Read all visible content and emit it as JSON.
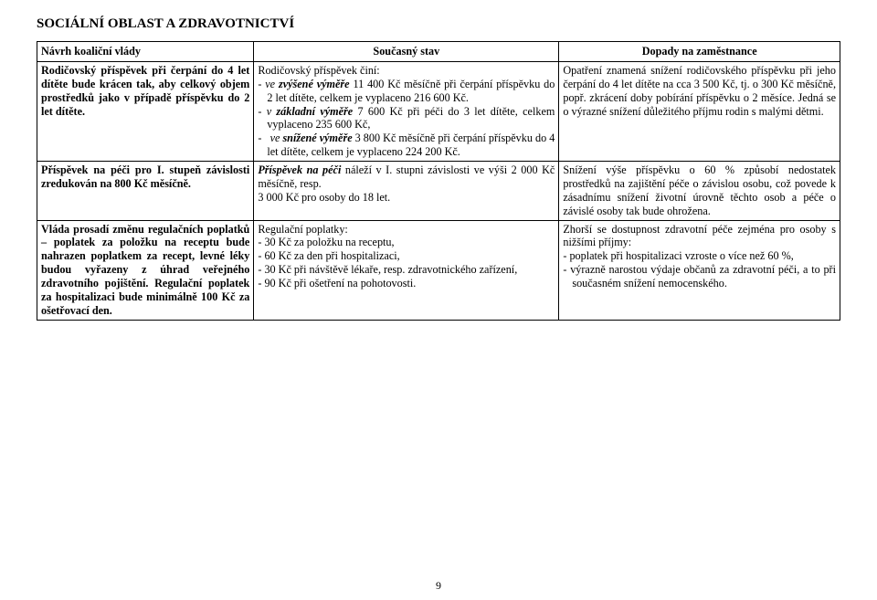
{
  "heading": "SOCIÁLNÍ OBLAST A ZDRAVOTNICTVÍ",
  "header": {
    "col1": "Návrh koaliční vlády",
    "col2": "Současný stav",
    "col3": "Dopady na zaměstnance"
  },
  "row1": {
    "col1": "Rodičovský příspěvek při čerpání do 4 let dítěte bude krácen tak, aby celkový objem prostředků jako v případě příspěvku do 2 let dítěte.",
    "col2": {
      "lead": "Rodičovský příspěvek činí:",
      "li1a": "ve ",
      "li1b": "zvýšené výměře",
      "li1c": " 11 400 Kč měsíčně při čerpání příspěvku do 2 let dítěte, celkem je vyplaceno 216 600 Kč.",
      "li2a": "v ",
      "li2b": "základní výměře",
      "li2c": " 7 600 Kč při péči do 3 let dítěte, celkem vyplaceno 235 600 Kč,",
      "li3a": "ve ",
      "li3b": "snížené výměře",
      "li3c": " 3 800 Kč měsíčně při čerpání příspěvku do 4 let dítěte, celkem je vyplaceno 224 200 Kč."
    },
    "col3": "Opatření znamená snížení rodičovského příspěvku při jeho čerpání do 4 let dítěte na cca 3 500 Kč, tj. o 300 Kč měsíčně, popř. zkrácení doby pobírání příspěvku o 2 měsíce. Jedná se o výrazné snížení důležitého příjmu rodin s malými dětmi."
  },
  "row2": {
    "col1": "Příspěvek na péči pro I. stupeň závislosti zredukován na 800 Kč měsíčně.",
    "col2": {
      "p1a": "Příspěvek na péči",
      "p1b": " náleží v I. stupni závislosti ve výši 2 000 Kč měsíčně, resp.",
      "p2": "3 000 Kč pro osoby do 18 let."
    },
    "col3": "Snížení výše příspěvku o 60 % způsobí nedostatek prostředků na zajištění péče o závislou osobu, což povede k zásadnímu snížení životní úrovně těchto osob a péče o závislé osoby tak bude ohrožena."
  },
  "row3": {
    "col1": "Vláda prosadí změnu regulačních poplatků – poplatek za položku na receptu bude nahrazen poplatkem za recept, levné léky budou vyřazeny z úhrad veřejného zdravotního pojištění. Regulační poplatek za hospitalizaci bude minimálně 100 Kč za ošetřovací den.",
    "col2": {
      "lead": "Regulační poplatky:",
      "li1": "30 Kč za položku na receptu,",
      "li2": "60 Kč za den při hospitalizaci,",
      "li3": "30 Kč při návštěvě lékaře, resp. zdravotnického zařízení,",
      "li4": "90 Kč při ošetření na pohotovosti."
    },
    "col3": {
      "p1": "Zhorší se dostupnost zdravotní péče zejména pro osoby s nižšími příjmy:",
      "li1": "poplatek při hospitalizaci vzroste o více než 60 %,",
      "li2": "výrazně narostou výdaje občanů za zdravotní péči, a to při současném snížení nemocenského."
    }
  },
  "pagenum": "9"
}
